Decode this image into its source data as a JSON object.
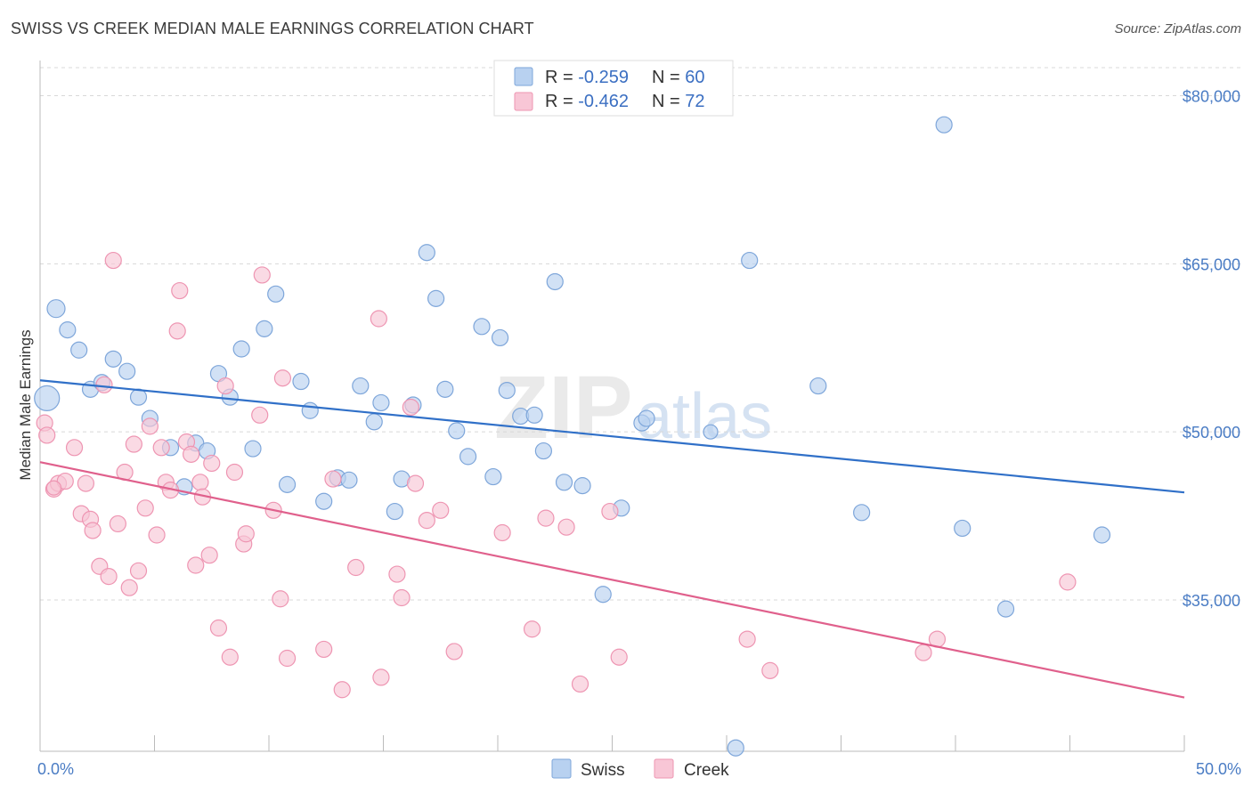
{
  "title": "SWISS VS CREEK MEDIAN MALE EARNINGS CORRELATION CHART",
  "source": "Source: ZipAtlas.com",
  "watermark": {
    "zip": "ZIP",
    "atlas": "atlas"
  },
  "colors": {
    "swiss_fill": "#b8d1f0",
    "swiss_stroke": "#7ea6da",
    "swiss_line": "#3070c8",
    "creek_fill": "#f8c6d6",
    "creek_stroke": "#ee95b2",
    "creek_line": "#e0608c",
    "grid": "#d8d8d8",
    "tick_text": "#4a7cc4"
  },
  "legend": {
    "rows": [
      {
        "r_label": "R = ",
        "r_value": "-0.259",
        "n_label": "N = ",
        "n_value": "60"
      },
      {
        "r_label": "R = ",
        "r_value": "-0.462",
        "n_label": "N = ",
        "n_value": "72"
      }
    ]
  },
  "bottom_legend": [
    "Swiss",
    "Creek"
  ],
  "chart_data": {
    "type": "scatter",
    "title": "SWISS VS CREEK MEDIAN MALE EARNINGS CORRELATION CHART",
    "xlabel": "",
    "ylabel": "Median Male Earnings",
    "xlim": [
      0,
      50
    ],
    "ylim": [
      21500,
      82500
    ],
    "x_tick_labels": [
      {
        "x": 0,
        "label": "0.0%"
      },
      {
        "x": 50,
        "label": "50.0%"
      }
    ],
    "y_ticks": [
      {
        "y": 80000,
        "label": "$80,000"
      },
      {
        "y": 65000,
        "label": "$65,000"
      },
      {
        "y": 50000,
        "label": "$50,000"
      },
      {
        "y": 35000,
        "label": "$35,000"
      }
    ],
    "series": [
      {
        "name": "Swiss",
        "R": -0.259,
        "N": 60,
        "trend": [
          [
            0,
            54600
          ],
          [
            50,
            44600
          ]
        ],
        "points": [
          [
            0.3,
            53000,
            14
          ],
          [
            0.7,
            61000,
            10
          ],
          [
            1.2,
            59100,
            9
          ],
          [
            1.7,
            57300,
            9
          ],
          [
            2.2,
            53800,
            9
          ],
          [
            2.7,
            54400,
            9
          ],
          [
            3.2,
            56500,
            9
          ],
          [
            3.8,
            55400,
            9
          ],
          [
            4.3,
            53100,
            9
          ],
          [
            4.8,
            51200,
            9
          ],
          [
            5.7,
            48600,
            9
          ],
          [
            6.3,
            45100,
            9
          ],
          [
            6.8,
            49000,
            9
          ],
          [
            7.3,
            48300,
            9
          ],
          [
            7.8,
            55200,
            9
          ],
          [
            8.3,
            53100,
            9
          ],
          [
            8.8,
            57400,
            9
          ],
          [
            9.3,
            48500,
            9
          ],
          [
            9.8,
            59200,
            9
          ],
          [
            10.3,
            62300,
            9
          ],
          [
            10.8,
            45300,
            9
          ],
          [
            11.4,
            54500,
            9
          ],
          [
            11.8,
            51900,
            9
          ],
          [
            12.4,
            43800,
            9
          ],
          [
            13.0,
            45900,
            9
          ],
          [
            13.5,
            45700,
            9
          ],
          [
            14.0,
            54100,
            9
          ],
          [
            14.6,
            50900,
            9
          ],
          [
            14.9,
            52600,
            9
          ],
          [
            15.5,
            42900,
            9
          ],
          [
            15.8,
            45800,
            9
          ],
          [
            16.3,
            52400,
            9
          ],
          [
            16.9,
            66000,
            9
          ],
          [
            17.3,
            61900,
            9
          ],
          [
            17.7,
            53800,
            9
          ],
          [
            18.2,
            50100,
            9
          ],
          [
            18.7,
            47800,
            9
          ],
          [
            19.3,
            59400,
            9
          ],
          [
            19.8,
            46000,
            9
          ],
          [
            20.1,
            58400,
            9
          ],
          [
            20.4,
            53700,
            9
          ],
          [
            21.0,
            51400,
            9
          ],
          [
            21.6,
            51500,
            9
          ],
          [
            22.0,
            48300,
            9
          ],
          [
            22.5,
            63400,
            9
          ],
          [
            22.9,
            45500,
            9
          ],
          [
            23.7,
            45200,
            9
          ],
          [
            24.6,
            35500,
            9
          ],
          [
            25.4,
            43200,
            9
          ],
          [
            26.3,
            50800,
            9
          ],
          [
            26.5,
            51200,
            9
          ],
          [
            31.0,
            65300,
            9
          ],
          [
            34.0,
            54100,
            9
          ],
          [
            35.9,
            42800,
            9
          ],
          [
            39.5,
            77400,
            9
          ],
          [
            40.3,
            41400,
            9
          ],
          [
            42.2,
            34200,
            9
          ],
          [
            46.4,
            40800,
            9
          ],
          [
            30.4,
            21800,
            9
          ],
          [
            29.3,
            50000,
            8
          ]
        ]
      },
      {
        "name": "Creek",
        "R": -0.462,
        "N": 72,
        "trend": [
          [
            0,
            47300
          ],
          [
            50,
            26300
          ]
        ],
        "points": [
          [
            0.2,
            50800,
            9
          ],
          [
            0.3,
            49700,
            9
          ],
          [
            0.6,
            44900,
            9
          ],
          [
            0.8,
            45400,
            9
          ],
          [
            1.1,
            45600,
            9
          ],
          [
            1.5,
            48600,
            9
          ],
          [
            1.8,
            42700,
            9
          ],
          [
            2.0,
            45400,
            9
          ],
          [
            2.2,
            42200,
            9
          ],
          [
            2.3,
            41200,
            9
          ],
          [
            2.6,
            38000,
            9
          ],
          [
            2.8,
            54200,
            9
          ],
          [
            3.0,
            37100,
            9
          ],
          [
            3.2,
            65300,
            9
          ],
          [
            3.4,
            41800,
            9
          ],
          [
            3.7,
            46400,
            9
          ],
          [
            3.9,
            36100,
            9
          ],
          [
            4.1,
            48900,
            9
          ],
          [
            4.3,
            37600,
            9
          ],
          [
            4.6,
            43200,
            9
          ],
          [
            4.8,
            50500,
            9
          ],
          [
            5.1,
            40800,
            9
          ],
          [
            5.3,
            48600,
            9
          ],
          [
            5.5,
            45500,
            9
          ],
          [
            5.7,
            44800,
            9
          ],
          [
            6.0,
            59000,
            9
          ],
          [
            6.1,
            62600,
            9
          ],
          [
            6.4,
            49100,
            9
          ],
          [
            6.6,
            48000,
            9
          ],
          [
            6.8,
            38100,
            9
          ],
          [
            7.0,
            45500,
            9
          ],
          [
            7.1,
            44200,
            9
          ],
          [
            7.4,
            39000,
            9
          ],
          [
            7.5,
            47200,
            9
          ],
          [
            7.8,
            32500,
            9
          ],
          [
            8.1,
            54100,
            9
          ],
          [
            8.3,
            29900,
            9
          ],
          [
            8.5,
            46400,
            9
          ],
          [
            8.9,
            40000,
            9
          ],
          [
            9.0,
            40900,
            9
          ],
          [
            9.6,
            51500,
            9
          ],
          [
            9.7,
            64000,
            9
          ],
          [
            10.2,
            43000,
            9
          ],
          [
            10.5,
            35100,
            9
          ],
          [
            10.6,
            54800,
            9
          ],
          [
            10.8,
            29800,
            9
          ],
          [
            12.4,
            30600,
            9
          ],
          [
            12.8,
            45800,
            9
          ],
          [
            13.2,
            27000,
            9
          ],
          [
            13.8,
            37900,
            9
          ],
          [
            14.8,
            60100,
            9
          ],
          [
            14.9,
            28100,
            9
          ],
          [
            15.6,
            37300,
            9
          ],
          [
            15.8,
            35200,
            9
          ],
          [
            16.2,
            52200,
            9
          ],
          [
            16.4,
            45400,
            9
          ],
          [
            16.9,
            42100,
            9
          ],
          [
            17.5,
            43000,
            9
          ],
          [
            18.1,
            30400,
            9
          ],
          [
            20.2,
            41000,
            9
          ],
          [
            21.5,
            32400,
            9
          ],
          [
            22.1,
            42300,
            9
          ],
          [
            23.0,
            41500,
            9
          ],
          [
            23.6,
            27500,
            9
          ],
          [
            24.9,
            42900,
            9
          ],
          [
            25.3,
            29900,
            9
          ],
          [
            30.9,
            31500,
            9
          ],
          [
            31.9,
            28700,
            9
          ],
          [
            38.6,
            30300,
            9
          ],
          [
            39.2,
            31500,
            9
          ],
          [
            44.9,
            36600,
            9
          ],
          [
            0.6,
            45000,
            8
          ]
        ]
      }
    ]
  }
}
